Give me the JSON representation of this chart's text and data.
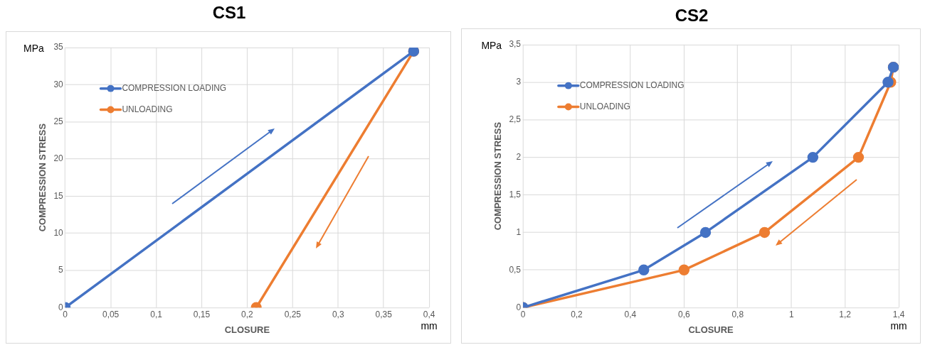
{
  "chart_data": [
    {
      "type": "line",
      "title": "CS1",
      "xlabel": "CLOSURE",
      "ylabel": "COMPRESSION STRESS",
      "annotations": [
        "MPa",
        "mm"
      ],
      "series": [
        {
          "name": "COMPRESSION LOADING",
          "color": "#4472c4",
          "x": [
            0,
            0.383
          ],
          "values": [
            0,
            34.5
          ]
        },
        {
          "name": "UNLOADING",
          "color": "#ed7d31",
          "x": [
            0.383,
            0.21
          ],
          "values": [
            34.5,
            0
          ]
        }
      ],
      "xlim": [
        0,
        0.4
      ],
      "xticks": [
        {
          "value": 0,
          "label": "0"
        },
        {
          "value": 0.05,
          "label": "0,05"
        },
        {
          "value": 0.1,
          "label": "0,1"
        },
        {
          "value": 0.15,
          "label": "0,15"
        },
        {
          "value": 0.2,
          "label": "0,2"
        },
        {
          "value": 0.25,
          "label": "0,25"
        },
        {
          "value": 0.3,
          "label": "0,3"
        },
        {
          "value": 0.35,
          "label": "0,35"
        },
        {
          "value": 0.4,
          "label": "0,4"
        }
      ],
      "ylim": [
        0,
        35
      ],
      "yticks": [
        {
          "value": 0,
          "label": "0"
        },
        5,
        10,
        15,
        20,
        25,
        30,
        35
      ],
      "grid": true,
      "legend": "top left",
      "marker": "circle",
      "line_style": "solid"
    },
    {
      "type": "line",
      "title": "CS2",
      "xlabel": "CLOSURE",
      "ylabel": "COMPRESSION STRESS",
      "annotations": [
        "MPa",
        "mm"
      ],
      "series": [
        {
          "name": "COMPRESSION LOADING",
          "color": "#4472c4",
          "x": [
            0,
            0.45,
            0.68,
            1.08,
            1.36,
            1.38
          ],
          "values": [
            0,
            0.5,
            1,
            2,
            3,
            3.2
          ]
        },
        {
          "name": "UNLOADING",
          "color": "#ed7d31",
          "x": [
            1.38,
            1.37,
            1.25,
            0.9,
            0.6,
            0
          ],
          "values": [
            3.2,
            3,
            2,
            1,
            0.5,
            0
          ]
        }
      ],
      "xlim": [
        0,
        1.4
      ],
      "xticks": [
        {
          "value": 0,
          "label": "0"
        },
        {
          "value": 0.2,
          "label": "0,2"
        },
        {
          "value": 0.4,
          "label": "0,4"
        },
        {
          "value": 0.6,
          "label": "0,6"
        },
        {
          "value": 0.8,
          "label": "0,8"
        },
        1,
        {
          "value": 1.2,
          "label": "1,2"
        },
        {
          "value": 1.4,
          "label": "1,4"
        }
      ],
      "ylim": [
        0,
        3.5
      ],
      "yticks": [
        {
          "value": 0,
          "label": "0"
        },
        {
          "value": 0.5,
          "label": "0,5"
        },
        1,
        {
          "value": 1.5,
          "label": "1,5"
        },
        2,
        {
          "value": 2.5,
          "label": "2,5"
        },
        3,
        {
          "value": 3.5,
          "label": "3,5"
        }
      ],
      "grid": true,
      "legend": "top left",
      "marker": "circle",
      "line_style": "solid"
    }
  ]
}
